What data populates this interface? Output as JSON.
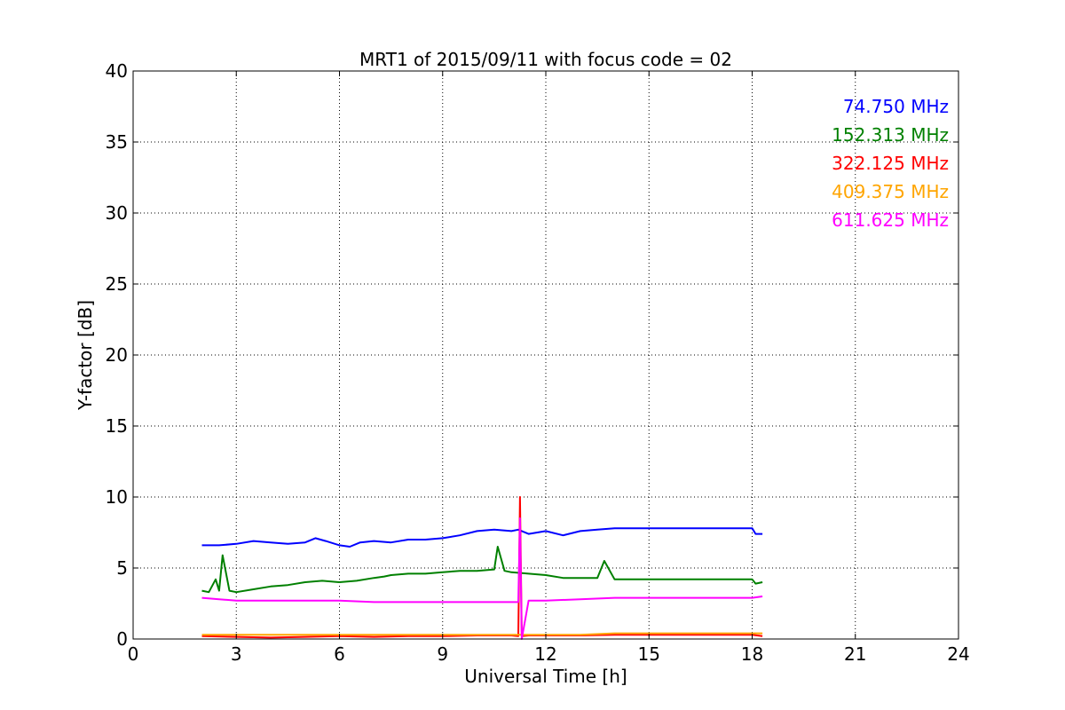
{
  "chart_data": {
    "type": "line",
    "title": "MRT1 of 2015/09/11 with focus code = 02",
    "xlabel": "Universal Time [h]",
    "ylabel": "Y-factor [dB]",
    "xlim": [
      0,
      24
    ],
    "ylim": [
      0,
      40
    ],
    "xticks": [
      0,
      3,
      6,
      9,
      12,
      15,
      18,
      21,
      24
    ],
    "yticks": [
      0,
      5,
      10,
      15,
      20,
      25,
      30,
      35,
      40
    ],
    "grid": true,
    "legend_placement": "top-right",
    "series": [
      {
        "name": "74.750 MHz",
        "color": "#0000ff",
        "x": [
          2.0,
          2.5,
          3.0,
          3.5,
          4.0,
          4.5,
          5.0,
          5.3,
          5.6,
          6.0,
          6.3,
          6.6,
          7.0,
          7.5,
          8.0,
          8.5,
          9.0,
          9.5,
          10.0,
          10.5,
          11.0,
          11.2,
          11.5,
          12.0,
          12.5,
          13.0,
          13.5,
          14.0,
          18.0,
          18.1,
          18.3
        ],
        "y": [
          6.6,
          6.6,
          6.7,
          6.9,
          6.8,
          6.7,
          6.8,
          7.1,
          6.9,
          6.6,
          6.5,
          6.8,
          6.9,
          6.8,
          7.0,
          7.0,
          7.1,
          7.3,
          7.6,
          7.7,
          7.6,
          7.7,
          7.4,
          7.6,
          7.3,
          7.6,
          7.7,
          7.8,
          7.8,
          7.4,
          7.4
        ]
      },
      {
        "name": "152.313 MHz",
        "color": "#008000",
        "x": [
          2.0,
          2.2,
          2.4,
          2.5,
          2.6,
          2.8,
          3.0,
          3.5,
          4.0,
          4.5,
          5.0,
          5.5,
          6.0,
          6.5,
          7.0,
          7.3,
          7.5,
          8.0,
          8.5,
          9.0,
          9.5,
          10.0,
          10.5,
          10.6,
          10.8,
          11.0,
          11.5,
          12.0,
          12.5,
          13.0,
          13.5,
          13.7,
          14.0,
          18.0,
          18.1,
          18.3
        ],
        "y": [
          3.4,
          3.3,
          4.2,
          3.4,
          5.9,
          3.4,
          3.3,
          3.5,
          3.7,
          3.8,
          4.0,
          4.1,
          4.0,
          4.1,
          4.3,
          4.4,
          4.5,
          4.6,
          4.6,
          4.7,
          4.8,
          4.8,
          4.9,
          6.5,
          4.8,
          4.7,
          4.6,
          4.5,
          4.3,
          4.3,
          4.3,
          5.5,
          4.2,
          4.2,
          3.9,
          4.0
        ]
      },
      {
        "name": "322.125 MHz",
        "color": "#ff0000",
        "x": [
          2.0,
          3.0,
          4.0,
          5.0,
          6.0,
          7.0,
          8.0,
          9.0,
          10.0,
          11.0,
          11.2,
          11.25,
          11.3,
          11.5,
          12.0,
          13.0,
          14.0,
          18.0,
          18.3
        ],
        "y": [
          0.2,
          0.15,
          0.1,
          0.15,
          0.2,
          0.15,
          0.2,
          0.2,
          0.25,
          0.25,
          0.2,
          10.0,
          0.2,
          0.25,
          0.25,
          0.25,
          0.3,
          0.3,
          0.2
        ]
      },
      {
        "name": "409.375 MHz",
        "color": "#ffa500",
        "x": [
          2.0,
          3.0,
          4.0,
          5.0,
          6.0,
          7.0,
          8.0,
          9.0,
          10.0,
          11.0,
          12.0,
          13.0,
          14.0,
          18.0,
          18.3
        ],
        "y": [
          0.3,
          0.3,
          0.3,
          0.3,
          0.3,
          0.3,
          0.3,
          0.3,
          0.3,
          0.3,
          0.3,
          0.3,
          0.4,
          0.4,
          0.4
        ]
      },
      {
        "name": "611.625 MHz",
        "color": "#ff00ff",
        "x": [
          2.0,
          2.5,
          3.0,
          4.0,
          5.0,
          6.0,
          7.0,
          8.0,
          9.0,
          10.0,
          11.0,
          11.2,
          11.25,
          11.3,
          11.5,
          12.0,
          13.0,
          14.0,
          18.0,
          18.3
        ],
        "y": [
          2.9,
          2.8,
          2.7,
          2.7,
          2.7,
          2.7,
          2.6,
          2.6,
          2.6,
          2.6,
          2.6,
          2.6,
          8.5,
          0.0,
          2.7,
          2.7,
          2.8,
          2.9,
          2.9,
          3.0
        ]
      }
    ]
  }
}
